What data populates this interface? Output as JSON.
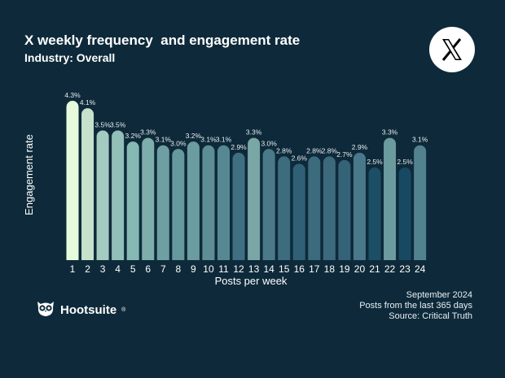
{
  "header": {
    "title": "X weekly frequency  and engagement rate",
    "subtitle": "Industry: Overall"
  },
  "brand": {
    "name": "Hootsuite",
    "logo_icon": "owl-icon",
    "platform_icon": "x-logo-icon"
  },
  "footer": {
    "date": "September 2024",
    "scope": "Posts from the last 365 days",
    "source": "Source: Critical Truth"
  },
  "colors": {
    "background": "#0e2a3a",
    "bar_light": "#e8ffe0",
    "bar_dark": "#0f4a66"
  },
  "chart_data": {
    "type": "bar",
    "title": "X weekly frequency  and engagement rate",
    "subtitle": "Industry: Overall",
    "xlabel": "Posts per week",
    "ylabel": "Engagement rate",
    "categories": [
      "1",
      "2",
      "3",
      "4",
      "5",
      "6",
      "7",
      "8",
      "9",
      "10",
      "11",
      "12",
      "13",
      "14",
      "15",
      "16",
      "17",
      "18",
      "19",
      "20",
      "21",
      "22",
      "23",
      "24"
    ],
    "values": [
      4.3,
      4.1,
      3.5,
      3.5,
      3.2,
      3.3,
      3.1,
      3.0,
      3.2,
      3.1,
      3.1,
      2.9,
      3.3,
      3.0,
      2.8,
      2.6,
      2.8,
      2.8,
      2.7,
      2.9,
      2.5,
      3.3,
      2.5,
      3.1
    ],
    "labels": [
      "4.3%",
      "4.1%",
      "3.5%",
      "3.5%",
      "3.2%",
      "3.3%",
      "3.1%",
      "3.0%",
      "3.2%",
      "3.1%",
      "3.1%",
      "2.9%",
      "3.3%",
      "3.0%",
      "2.8%",
      "2.6%",
      "2.8%",
      "2.8%",
      "2.7%",
      "2.9%",
      "2.5%",
      "3.3%",
      "2.5%",
      "3.1%"
    ],
    "bar_colors": [
      "#e6fbdc",
      "#c6e2cc",
      "#a3cbc0",
      "#92c0b8",
      "#86b8b3",
      "#7daeab",
      "#6e9fa2",
      "#66999d",
      "#6b9c9f",
      "#5e8e95",
      "#568892",
      "#3f6f80",
      "#7aa6a6",
      "#4b7988",
      "#3e6c7f",
      "#2f6075",
      "#3d6b7e",
      "#3c697c",
      "#346378",
      "#49788a",
      "#1c4f66",
      "#6b9b9f",
      "#184962",
      "#53828f"
    ],
    "ylim": [
      0,
      4.5
    ],
    "grid": false,
    "legend": "none"
  }
}
